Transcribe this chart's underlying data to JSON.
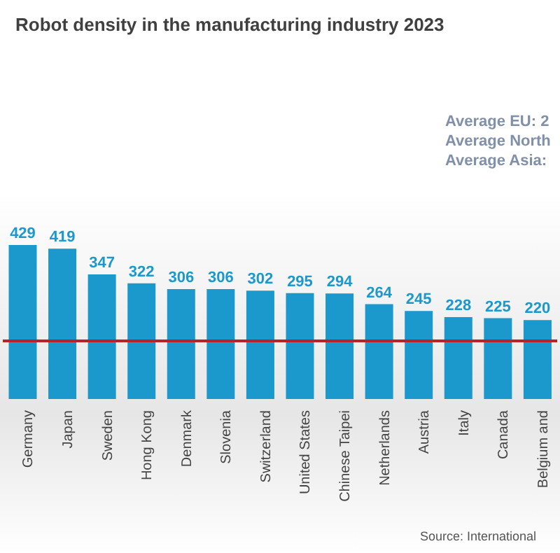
{
  "chart_data": {
    "type": "bar",
    "title": "Robot density in the manufacturing industry 2023",
    "categories": [
      "Germany",
      "Japan",
      "Sweden",
      "Hong Kong",
      "Denmark",
      "Slovenia",
      "Switzerland",
      "United States",
      "Chinese Taipei",
      "Netherlands",
      "Austria",
      "Italy",
      "Canada",
      "Belgium and"
    ],
    "values": [
      429,
      419,
      347,
      322,
      306,
      306,
      302,
      295,
      294,
      264,
      245,
      228,
      225,
      220
    ],
    "color": "#1b98cc",
    "data_labels": true,
    "grid": false,
    "legend": false,
    "ref_lines": [
      {
        "axis": "y",
        "value": 162,
        "color": "#b8232b"
      }
    ],
    "annotations": [
      "Average EU: 2",
      "Average North",
      "Average Asia:",
      "Source: International"
    ]
  }
}
